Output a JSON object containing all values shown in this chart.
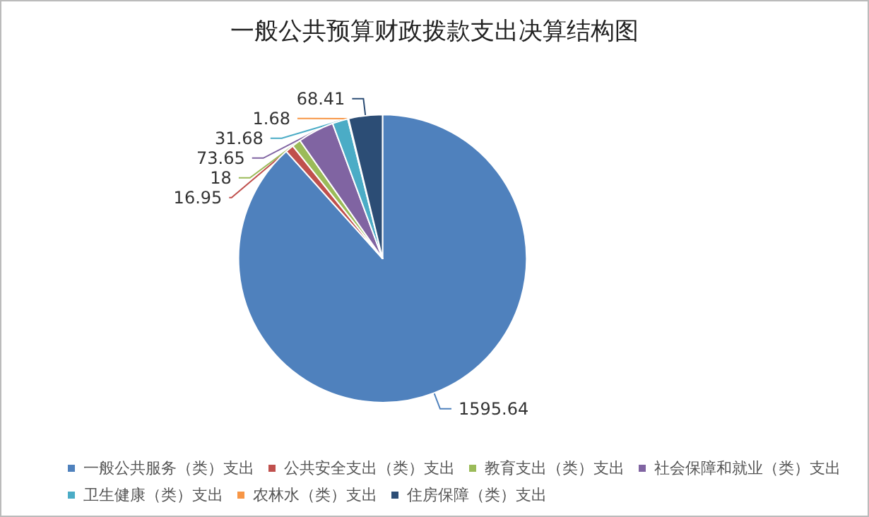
{
  "chart_data": {
    "type": "pie",
    "title": "一般公共预算财政拨款支出决算结构图",
    "categories": [
      "一般公共服务（类）支出",
      "公共安全支出（类）支出",
      "教育支出（类）支出",
      "社会保障和就业（类）支出",
      "卫生健康（类）支出",
      "农林水（类）支出",
      "住房保障（类）支出"
    ],
    "values": [
      1595.64,
      16.95,
      18,
      73.65,
      31.68,
      1.68,
      68.41
    ],
    "colors": [
      "#4f81bd",
      "#c0504d",
      "#9bbb59",
      "#8064a2",
      "#4bacc6",
      "#f79646",
      "#2c4d75"
    ],
    "data_labels": true,
    "legend": "bottom"
  }
}
